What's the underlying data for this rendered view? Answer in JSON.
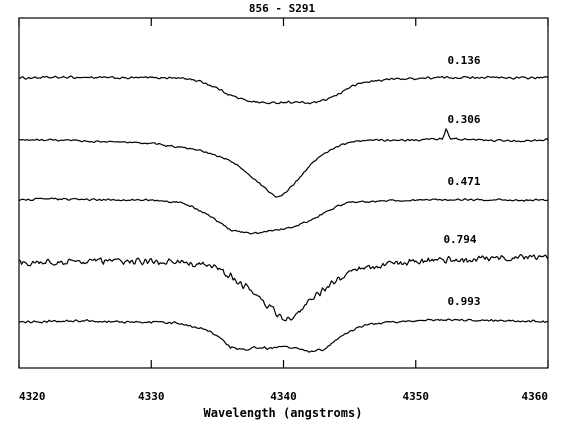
{
  "chart_data": {
    "type": "line",
    "title": "856 - S291",
    "xlabel": "Wavelength (angstroms)",
    "ylabel": "",
    "xlim": [
      4320,
      4360
    ],
    "xticks": [
      4320,
      4330,
      4340,
      4350,
      4360
    ],
    "yticks_labeled": false,
    "series": [
      {
        "name": "0.136",
        "noise": 0.06,
        "points": [
          [
            4320,
            0.0
          ],
          [
            4322,
            0.02
          ],
          [
            4325,
            0.03
          ],
          [
            4328,
            0.0
          ],
          [
            4330,
            0.02
          ],
          [
            4332,
            0.0
          ],
          [
            4333,
            -0.05
          ],
          [
            4334,
            -0.2
          ],
          [
            4335,
            -0.45
          ],
          [
            4336,
            -0.75
          ],
          [
            4337,
            -0.95
          ],
          [
            4338,
            -1.05
          ],
          [
            4339,
            -1.1
          ],
          [
            4340,
            -1.05
          ],
          [
            4341,
            -1.05
          ],
          [
            4342,
            -1.1
          ],
          [
            4343,
            -1.0
          ],
          [
            4344,
            -0.75
          ],
          [
            4345,
            -0.4
          ],
          [
            4346,
            -0.2
          ],
          [
            4348,
            -0.05
          ],
          [
            4350,
            -0.02
          ],
          [
            4352,
            0.02
          ],
          [
            4355,
            0.03
          ],
          [
            4358,
            0.0
          ],
          [
            4360,
            0.02
          ]
        ]
      },
      {
        "name": "0.306",
        "noise": 0.05,
        "points": [
          [
            4320,
            0.0
          ],
          [
            4322,
            0.0
          ],
          [
            4325,
            -0.05
          ],
          [
            4328,
            -0.1
          ],
          [
            4330,
            -0.15
          ],
          [
            4332,
            -0.3
          ],
          [
            4334,
            -0.5
          ],
          [
            4336,
            -0.9
          ],
          [
            4337,
            -1.3
          ],
          [
            4338,
            -1.8
          ],
          [
            4339,
            -2.3
          ],
          [
            4339.5,
            -2.5
          ],
          [
            4340,
            -2.35
          ],
          [
            4341,
            -1.8
          ],
          [
            4342,
            -1.1
          ],
          [
            4343,
            -0.6
          ],
          [
            4344,
            -0.3
          ],
          [
            4345,
            -0.1
          ],
          [
            4347,
            0.0
          ],
          [
            4350,
            0.0
          ],
          [
            4352,
            0.05
          ],
          [
            4352.3,
            0.5
          ],
          [
            4352.6,
            0.05
          ],
          [
            4355,
            0.0
          ],
          [
            4358,
            -0.05
          ],
          [
            4360,
            0.0
          ]
        ]
      },
      {
        "name": "0.471",
        "noise": 0.05,
        "points": [
          [
            4320,
            0.0
          ],
          [
            4322,
            0.05
          ],
          [
            4325,
            0.02
          ],
          [
            4328,
            0.0
          ],
          [
            4330,
            0.0
          ],
          [
            4332,
            -0.1
          ],
          [
            4333,
            -0.25
          ],
          [
            4334,
            -0.55
          ],
          [
            4335,
            -0.9
          ],
          [
            4336,
            -1.3
          ],
          [
            4337,
            -1.4
          ],
          [
            4338,
            -1.45
          ],
          [
            4339,
            -1.35
          ],
          [
            4340,
            -1.25
          ],
          [
            4341,
            -1.1
          ],
          [
            4342,
            -0.9
          ],
          [
            4343,
            -0.6
          ],
          [
            4344,
            -0.3
          ],
          [
            4345,
            -0.1
          ],
          [
            4347,
            -0.05
          ],
          [
            4350,
            0.0
          ],
          [
            4355,
            0.02
          ],
          [
            4358,
            -0.02
          ],
          [
            4360,
            0.0
          ]
        ]
      },
      {
        "name": "0.794",
        "noise": 0.18,
        "points": [
          [
            4320,
            0.0
          ],
          [
            4323,
            0.0
          ],
          [
            4326,
            0.05
          ],
          [
            4329,
            0.0
          ],
          [
            4332,
            0.0
          ],
          [
            4334,
            -0.1
          ],
          [
            4335,
            -0.3
          ],
          [
            4336,
            -0.6
          ],
          [
            4337,
            -1.0
          ],
          [
            4338,
            -1.4
          ],
          [
            4339,
            -2.0
          ],
          [
            4340,
            -2.5
          ],
          [
            4341,
            -2.3
          ],
          [
            4342,
            -1.7
          ],
          [
            4343,
            -1.2
          ],
          [
            4344,
            -0.8
          ],
          [
            4345,
            -0.5
          ],
          [
            4346,
            -0.3
          ],
          [
            4348,
            -0.1
          ],
          [
            4350,
            0.0
          ],
          [
            4354,
            0.1
          ],
          [
            4358,
            0.2
          ],
          [
            4360,
            0.2
          ]
        ]
      },
      {
        "name": "0.993",
        "noise": 0.06,
        "points": [
          [
            4320,
            0.0
          ],
          [
            4322,
            0.02
          ],
          [
            4325,
            0.05
          ],
          [
            4328,
            0.0
          ],
          [
            4330,
            0.0
          ],
          [
            4332,
            -0.05
          ],
          [
            4334,
            -0.3
          ],
          [
            4335,
            -0.6
          ],
          [
            4336,
            -1.1
          ],
          [
            4337,
            -1.2
          ],
          [
            4338,
            -1.1
          ],
          [
            4339,
            -1.15
          ],
          [
            4340,
            -1.05
          ],
          [
            4341,
            -1.15
          ],
          [
            4342,
            -1.3
          ],
          [
            4343,
            -1.2
          ],
          [
            4344,
            -0.8
          ],
          [
            4345,
            -0.4
          ],
          [
            4346,
            -0.15
          ],
          [
            4348,
            0.0
          ],
          [
            4350,
            0.05
          ],
          [
            4353,
            0.1
          ],
          [
            4356,
            0.05
          ],
          [
            4358,
            0.05
          ],
          [
            4360,
            0.0
          ]
        ]
      }
    ]
  }
}
